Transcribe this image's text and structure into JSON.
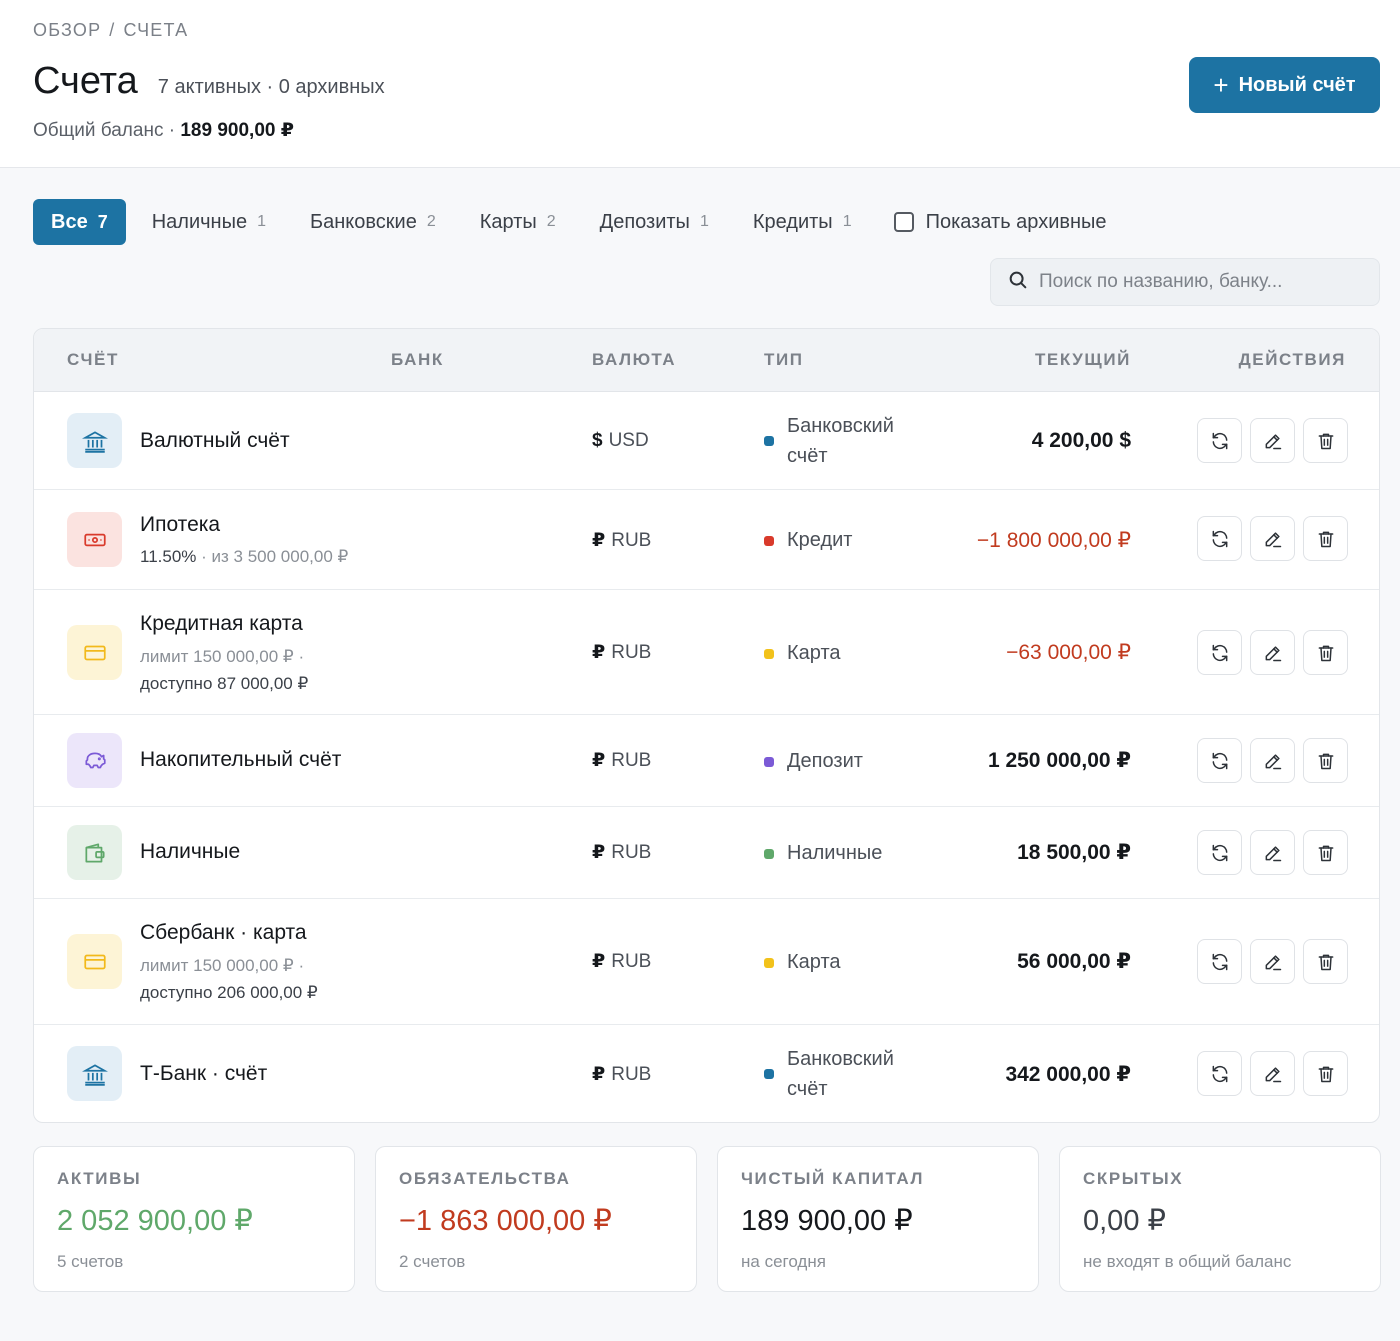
{
  "breadcrumb": {
    "root": "ОБЗОР",
    "sep": "/",
    "current": "СЧЕТА"
  },
  "header": {
    "title": "Счета",
    "subtitle": "7 активных · 0 архивных",
    "balance_label": "Общий баланс ·",
    "balance_value": "189 900,00 ₽",
    "new_button": "Новый счёт"
  },
  "tabs": [
    {
      "label": "Все",
      "count": "7",
      "active": true
    },
    {
      "label": "Наличные",
      "count": "1"
    },
    {
      "label": "Банковские",
      "count": "2"
    },
    {
      "label": "Карты",
      "count": "2"
    },
    {
      "label": "Депозиты",
      "count": "1"
    },
    {
      "label": "Кредиты",
      "count": "1"
    }
  ],
  "archive_toggle": {
    "label": "Показать архивные",
    "checked": false
  },
  "search": {
    "placeholder": "Поиск по названию, банку..."
  },
  "table": {
    "columns": {
      "account": "СЧЁТ",
      "bank": "БАНК",
      "currency": "ВАЛЮТА",
      "type": "ТИП",
      "current": "ТЕКУЩИЙ",
      "actions": "ДЕЙСТВИЯ"
    },
    "rows": [
      {
        "name": "Валютный счёт",
        "icon": "bank-icon",
        "currency_symbol": "$",
        "currency": "USD",
        "type_line1": "Банковский",
        "type_line2": "счёт",
        "type_color": "#1d73a3",
        "amount": "4 200,00 $"
      },
      {
        "name": "Ипотека",
        "icon": "cash-icon",
        "sub_rate": "11.50%",
        "sub_rest": " · из 3 500 000,00 ₽",
        "currency_symbol": "₽",
        "currency": "RUB",
        "type": "Кредит",
        "type_color": "#d93a2b",
        "amount": "−1 800 000,00 ₽"
      },
      {
        "name": "Кредитная карта",
        "icon": "card-icon",
        "sub_line1": "лимит 150 000,00 ₽ ·",
        "sub_line2": "доступно 87 000,00 ₽",
        "currency_symbol": "₽",
        "currency": "RUB",
        "type": "Карта",
        "type_color": "#f2c21b",
        "amount": "−63 000,00 ₽"
      },
      {
        "name": "Накопительный счёт",
        "icon": "piggy-bank-icon",
        "currency_symbol": "₽",
        "currency": "RUB",
        "type": "Депозит",
        "type_color": "#7b5ad6",
        "amount": "1 250 000,00 ₽"
      },
      {
        "name": "Наличные",
        "icon": "wallet-icon",
        "currency_symbol": "₽",
        "currency": "RUB",
        "type": "Наличные",
        "type_color": "#5fa86a",
        "amount": "18 500,00 ₽"
      },
      {
        "name": "Сбербанк · карта",
        "icon": "card-icon",
        "sub_line1": "лимит 150 000,00 ₽ ·",
        "sub_line2": "доступно 206 000,00 ₽",
        "currency_symbol": "₽",
        "currency": "RUB",
        "type": "Карта",
        "type_color": "#f2c21b",
        "amount": "56 000,00 ₽"
      },
      {
        "name": "Т-Банк · счёт",
        "icon": "bank-icon",
        "currency_symbol": "₽",
        "currency": "RUB",
        "type_line1": "Банковский",
        "type_line2": "счёт",
        "type_color": "#1d73a3",
        "amount": "342 000,00 ₽"
      }
    ]
  },
  "summary": {
    "assets": {
      "label": "АКТИВЫ",
      "value": "2 052 900,00 ₽",
      "note": "5 счетов",
      "color": "#5fa86a"
    },
    "liabilities": {
      "label": "ОБЯЗАТЕЛЬСТВА",
      "value": "−1 863 000,00 ₽",
      "note": "2 счетов",
      "color": "#c13b1f"
    },
    "net": {
      "label": "ЧИСТЫЙ КАПИТАЛ",
      "value": "189 900,00 ₽",
      "note": "на сегодня",
      "color": "#15181c"
    },
    "hidden": {
      "label": "СКРЫТЫХ",
      "value": "0,00 ₽",
      "note": "не входят в общий баланс",
      "color": "#3b4048"
    }
  }
}
